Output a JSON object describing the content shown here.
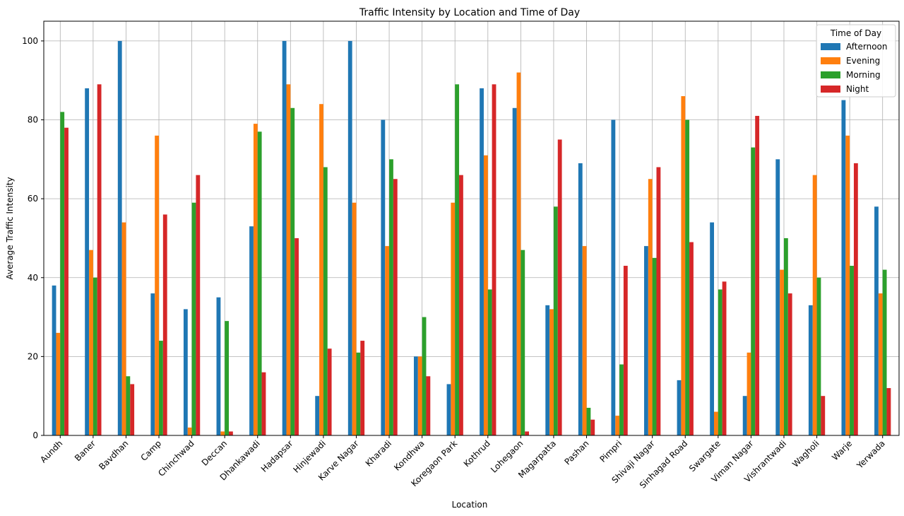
{
  "chart_data": {
    "type": "bar",
    "title": "Traffic Intensity by Location and Time of Day",
    "xlabel": "Location",
    "ylabel": "Average Traffic Intensity",
    "ylim": [
      0,
      105
    ],
    "yticks": [
      0,
      20,
      40,
      60,
      80,
      100
    ],
    "grid": true,
    "legend": {
      "title": "Time of Day",
      "placement": "top-right"
    },
    "categories": [
      "Aundh",
      "Baner",
      "Bavdhan",
      "Camp",
      "Chinchwad",
      "Deccan",
      "Dhankawadi",
      "Hadapsar",
      "Hinjewadi",
      "Karve Nagar",
      "Kharadi",
      "Kondhwa",
      "Koregaon Park",
      "Kothrud",
      "Lohegaon",
      "Magarpatta",
      "Pashan",
      "Pimpri",
      "Shivaji Nagar",
      "Sinhagad Road",
      "Swargate",
      "Viman Nagar",
      "Vishrantwadi",
      "Wagholi",
      "Warje",
      "Yerwada"
    ],
    "series": [
      {
        "name": "Afternoon",
        "color": "#1f77b4",
        "values": [
          38,
          88,
          100,
          36,
          32,
          35,
          53,
          100,
          10,
          100,
          80,
          20,
          13,
          88,
          83,
          33,
          69,
          80,
          48,
          14,
          54,
          10,
          70,
          33,
          85,
          58
        ]
      },
      {
        "name": "Evening",
        "color": "#ff7f0e",
        "values": [
          26,
          47,
          54,
          76,
          2,
          1,
          79,
          89,
          84,
          59,
          48,
          20,
          59,
          71,
          92,
          32,
          48,
          5,
          65,
          86,
          6,
          21,
          42,
          66,
          76,
          36
        ]
      },
      {
        "name": "Morning",
        "color": "#2ca02c",
        "values": [
          82,
          40,
          15,
          24,
          59,
          29,
          77,
          83,
          68,
          21,
          70,
          30,
          89,
          37,
          47,
          58,
          7,
          18,
          45,
          80,
          37,
          73,
          50,
          40,
          43,
          42
        ]
      },
      {
        "name": "Night",
        "color": "#d62728",
        "values": [
          78,
          89,
          13,
          56,
          66,
          1,
          16,
          50,
          22,
          24,
          65,
          15,
          66,
          89,
          1,
          75,
          4,
          43,
          68,
          49,
          39,
          81,
          36,
          10,
          69,
          12
        ]
      }
    ]
  }
}
